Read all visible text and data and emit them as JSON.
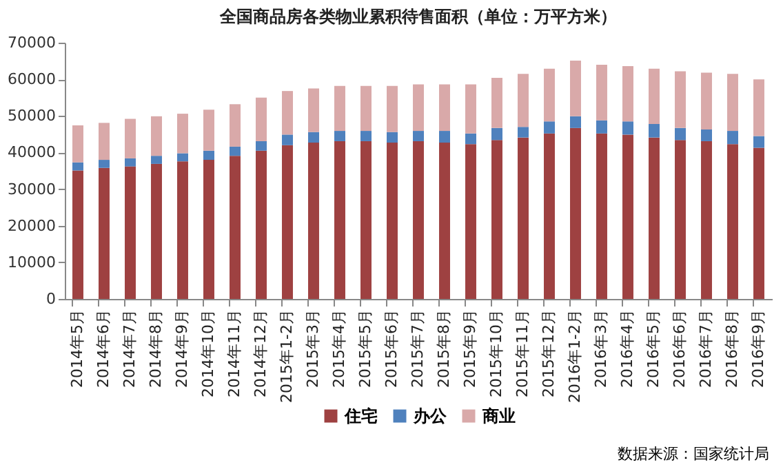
{
  "chart_data": {
    "type": "bar",
    "title": "全国商品房各类物业累积待售面积（单位：万平方米）",
    "stacked": true,
    "categories": [
      "2014年5月",
      "2014年6月",
      "2014年7月",
      "2014年8月",
      "2014年9月",
      "2014年10月",
      "2014年11月",
      "2014年12月",
      "2015年1-2月",
      "2015年3月",
      "2015年4月",
      "2015年5月",
      "2015年6月",
      "2015年7月",
      "2015年8月",
      "2015年9月",
      "2015年10月",
      "2015年11月",
      "2015年12月",
      "2016年1-2月",
      "2016年3月",
      "2016年4月",
      "2016年5月",
      "2016年6月",
      "2016年7月",
      "2016年8月",
      "2016年9月"
    ],
    "series": [
      {
        "name": "住宅",
        "color": "#9e4141",
        "values": [
          35100,
          35800,
          36200,
          36900,
          37600,
          38000,
          39100,
          40500,
          42000,
          42700,
          43100,
          43100,
          42700,
          43100,
          42700,
          42300,
          43400,
          44100,
          45200,
          46700,
          45200,
          44900,
          44100,
          43400,
          43100,
          42300,
          41300
        ]
      },
      {
        "name": "办公",
        "color": "#4f81bd",
        "values": [
          2200,
          2200,
          2200,
          2200,
          2200,
          2500,
          2500,
          2600,
          2900,
          2900,
          2800,
          2800,
          2900,
          2800,
          3200,
          2900,
          3300,
          2900,
          3300,
          3200,
          3600,
          3600,
          3700,
          3300,
          3200,
          3600,
          3200
        ]
      },
      {
        "name": "商业",
        "color": "#d9a9a9",
        "values": [
          10100,
          10100,
          10800,
          10800,
          10800,
          11200,
          11600,
          11900,
          11900,
          11900,
          12300,
          12300,
          12600,
          12700,
          12700,
          13400,
          13700,
          14500,
          14400,
          15200,
          15200,
          15100,
          15100,
          15500,
          15500,
          15600,
          15500
        ]
      }
    ],
    "ylim": [
      0,
      70000
    ],
    "yticks": [
      0,
      10000,
      20000,
      30000,
      40000,
      50000,
      60000,
      70000
    ],
    "grid": false,
    "legend": "bottom",
    "annotations": [
      "数据来源：国家统计局"
    ]
  }
}
